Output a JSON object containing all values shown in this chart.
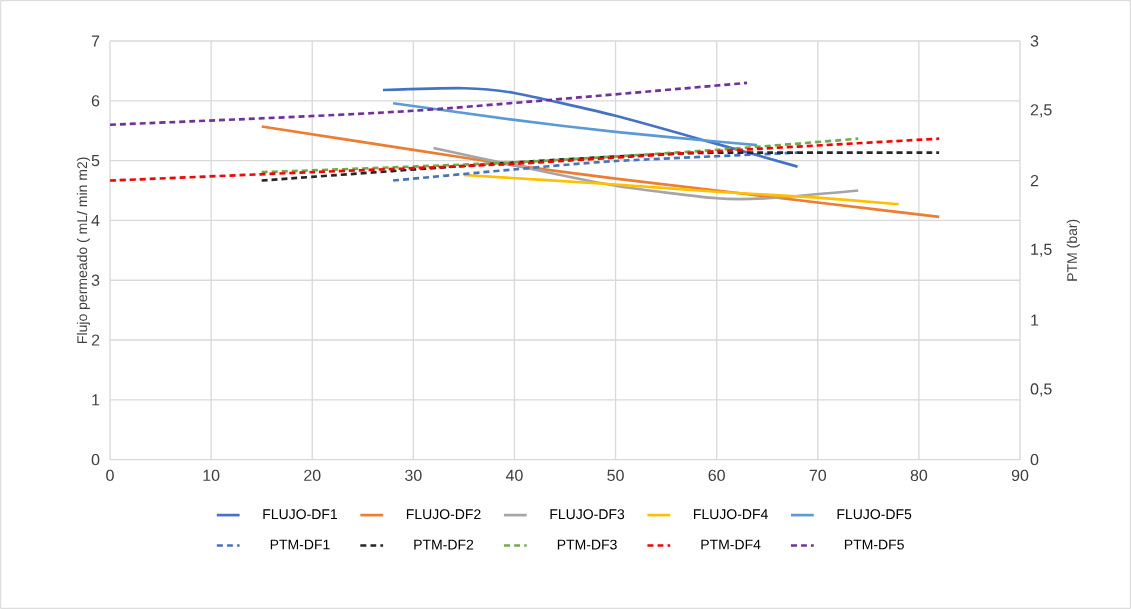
{
  "chart_data": {
    "type": "line",
    "xlim": [
      0,
      90
    ],
    "xticks": [
      0,
      10,
      20,
      30,
      40,
      50,
      60,
      70,
      80,
      90
    ],
    "ylim": [
      0,
      7
    ],
    "yticks": [
      0,
      1,
      2,
      3,
      4,
      5,
      6,
      7
    ],
    "y2lim": [
      0,
      3
    ],
    "y2ticks": [
      0,
      {
        "value": 0.5,
        "label": "0,5"
      },
      1,
      {
        "value": 1.5,
        "label": "1,5"
      },
      2,
      {
        "value": 2.5,
        "label": "2,5"
      },
      3
    ],
    "ylabel": "Flujo permeado ( mL/ min m2)",
    "y2label": "PTM (bar)",
    "grid": true,
    "legend": "bottom",
    "marker": "none",
    "series": [
      {
        "name": "FLUJO-DF1",
        "color": "#4472c4",
        "line_style": "solid",
        "x": [
          27,
          35,
          40,
          50,
          60,
          68
        ],
        "values": [
          6.18,
          6.21,
          6.13,
          5.75,
          5.28,
          4.9
        ]
      },
      {
        "name": "FLUJO-DF2",
        "color": "#ed7d31",
        "line_style": "solid",
        "x": [
          15,
          30,
          40,
          50,
          60,
          70,
          82
        ],
        "values": [
          5.57,
          5.18,
          4.92,
          4.7,
          4.5,
          4.3,
          4.06
        ]
      },
      {
        "name": "FLUJO-DF3",
        "color": "#a5a5a5",
        "line_style": "solid",
        "x": [
          32,
          40,
          50,
          60,
          65,
          74
        ],
        "values": [
          5.21,
          4.92,
          4.58,
          4.37,
          4.37,
          4.5
        ]
      },
      {
        "name": "FLUJO-DF4",
        "color": "#ffc000",
        "line_style": "solid",
        "x": [
          35,
          50,
          60,
          70,
          78
        ],
        "values": [
          4.76,
          4.6,
          4.48,
          4.38,
          4.27
        ]
      },
      {
        "name": "FLUJO-DF5",
        "color": "#5b9bd5",
        "line_style": "solid",
        "x": [
          28,
          40,
          50,
          60,
          64
        ],
        "values": [
          5.96,
          5.68,
          5.48,
          5.32,
          5.26
        ]
      },
      {
        "name": "PTM-DF1",
        "color": "#4472c4",
        "line_style": "dashed",
        "axis": "y2",
        "x": [
          28,
          40,
          50,
          68
        ],
        "values": [
          2.0,
          2.08,
          2.14,
          2.2
        ]
      },
      {
        "name": "PTM-DF2",
        "color": "#262626",
        "line_style": "dashed",
        "axis": "y2",
        "x": [
          15,
          40,
          55,
          62,
          82
        ],
        "values": [
          2.0,
          2.13,
          2.19,
          2.2,
          2.2
        ]
      },
      {
        "name": "PTM-DF3",
        "color": "#70ad47",
        "line_style": "dashed",
        "axis": "y2",
        "x": [
          15,
          40,
          60,
          74
        ],
        "values": [
          2.06,
          2.13,
          2.22,
          2.3
        ]
      },
      {
        "name": "PTM-DF4",
        "color": "#ff0000",
        "line_style": "dashed",
        "axis": "y2",
        "x": [
          0,
          20,
          40,
          60,
          82
        ],
        "values": [
          2.0,
          2.06,
          2.12,
          2.21,
          2.3
        ]
      },
      {
        "name": "PTM-DF5",
        "color": "#7030a0",
        "line_style": "dashed",
        "axis": "y2",
        "x": [
          0,
          30,
          63
        ],
        "values": [
          2.4,
          2.5,
          2.7
        ]
      }
    ]
  }
}
